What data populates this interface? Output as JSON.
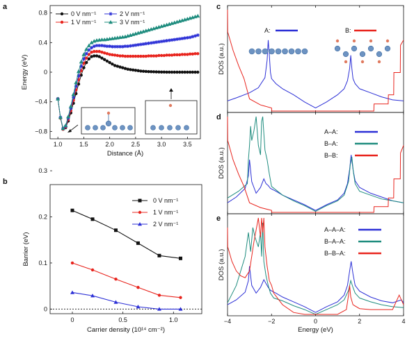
{
  "panel_letters": {
    "a": "a",
    "b": "b",
    "c": "c",
    "d": "d",
    "e": "e"
  },
  "chart_data": [
    {
      "id": "a",
      "type": "line",
      "xlabel": "Distance (Å)",
      "ylabel": "Energy (eV)",
      "xlim": [
        0.85,
        3.75
      ],
      "ylim": [
        -0.9,
        0.9
      ],
      "xticks": [
        "1.0",
        "1.5",
        "2.0",
        "2.5",
        "3.0",
        "3.5"
      ],
      "xtick_values": [
        1.0,
        1.5,
        2.0,
        2.5,
        3.0,
        3.5
      ],
      "yticks": [
        "−0.8",
        "−0.4",
        "0",
        "0.4",
        "0.8"
      ],
      "ytick_values": [
        -0.8,
        -0.4,
        0,
        0.4,
        0.8
      ],
      "legend_position": "top-left",
      "colors": [
        "#111111",
        "#e8241d",
        "#2b2fd6",
        "#1e8c7e"
      ],
      "markers": [
        "circle",
        "circle",
        "star",
        "triangle"
      ],
      "x": [
        1.0,
        1.05,
        1.1,
        1.15,
        1.2,
        1.25,
        1.3,
        1.35,
        1.4,
        1.45,
        1.5,
        1.55,
        1.6,
        1.65,
        1.7,
        1.75,
        1.8,
        1.85,
        1.9,
        1.95,
        2.0,
        2.05,
        2.1,
        2.15,
        2.2,
        2.25,
        2.3,
        2.35,
        2.4,
        2.45,
        2.5,
        2.55,
        2.6,
        2.65,
        2.7,
        2.75,
        2.8,
        2.85,
        2.9,
        2.95,
        3.0,
        3.05,
        3.1,
        3.15,
        3.2,
        3.25,
        3.3,
        3.35,
        3.4,
        3.45,
        3.5,
        3.55,
        3.6,
        3.65,
        3.7
      ],
      "series": [
        {
          "name": "0 V nm⁻¹",
          "values": [
            -0.36,
            -0.62,
            -0.77,
            -0.75,
            -0.66,
            -0.55,
            -0.42,
            -0.29,
            -0.16,
            -0.04,
            0.06,
            0.13,
            0.18,
            0.21,
            0.22,
            0.22,
            0.21,
            0.19,
            0.17,
            0.15,
            0.13,
            0.11,
            0.09,
            0.08,
            0.07,
            0.06,
            0.05,
            0.04,
            0.035,
            0.03,
            0.025,
            0.02,
            0.015,
            0.012,
            0.01,
            0.008,
            0.006,
            0.005,
            0.004,
            0.003,
            0.002,
            0.002,
            0.001,
            0.001,
            0.0,
            0.0,
            0.0,
            0.0,
            0.0,
            0.0,
            0.0,
            0.0,
            0.0,
            0.0,
            0.0
          ]
        },
        {
          "name": "1 V nm⁻¹",
          "values": [
            -0.36,
            -0.62,
            -0.77,
            -0.74,
            -0.64,
            -0.52,
            -0.38,
            -0.24,
            -0.1,
            0.02,
            0.12,
            0.19,
            0.24,
            0.27,
            0.28,
            0.28,
            0.28,
            0.27,
            0.26,
            0.25,
            0.24,
            0.235,
            0.23,
            0.225,
            0.22,
            0.22,
            0.215,
            0.215,
            0.215,
            0.215,
            0.215,
            0.215,
            0.215,
            0.215,
            0.215,
            0.22,
            0.22,
            0.22,
            0.22,
            0.225,
            0.225,
            0.225,
            0.23,
            0.23,
            0.23,
            0.235,
            0.235,
            0.235,
            0.24,
            0.24,
            0.24,
            0.245,
            0.245,
            0.25,
            0.25
          ]
        },
        {
          "name": "2 V nm⁻¹",
          "values": [
            -0.36,
            -0.61,
            -0.76,
            -0.73,
            -0.62,
            -0.49,
            -0.34,
            -0.19,
            -0.05,
            0.08,
            0.18,
            0.25,
            0.3,
            0.33,
            0.35,
            0.36,
            0.36,
            0.36,
            0.355,
            0.35,
            0.35,
            0.345,
            0.345,
            0.345,
            0.345,
            0.345,
            0.35,
            0.35,
            0.355,
            0.36,
            0.365,
            0.37,
            0.375,
            0.38,
            0.385,
            0.39,
            0.395,
            0.4,
            0.405,
            0.41,
            0.415,
            0.42,
            0.425,
            0.43,
            0.435,
            0.44,
            0.445,
            0.45,
            0.455,
            0.46,
            0.465,
            0.47,
            0.48,
            0.49,
            0.5
          ]
        },
        {
          "name": "3 V nm⁻¹",
          "values": [
            -0.36,
            -0.61,
            -0.76,
            -0.72,
            -0.6,
            -0.46,
            -0.3,
            -0.14,
            0.01,
            0.14,
            0.24,
            0.31,
            0.36,
            0.4,
            0.42,
            0.43,
            0.435,
            0.44,
            0.44,
            0.445,
            0.45,
            0.455,
            0.46,
            0.465,
            0.47,
            0.475,
            0.48,
            0.49,
            0.5,
            0.51,
            0.52,
            0.53,
            0.54,
            0.55,
            0.56,
            0.57,
            0.58,
            0.59,
            0.6,
            0.61,
            0.62,
            0.63,
            0.64,
            0.65,
            0.66,
            0.67,
            0.68,
            0.69,
            0.7,
            0.71,
            0.72,
            0.73,
            0.74,
            0.75,
            0.76
          ]
        }
      ]
    },
    {
      "id": "b",
      "type": "line",
      "xlabel": "Carrier density (10¹⁴ cm⁻²)",
      "ylabel": "Barrier (eV)",
      "xlim": [
        -0.22,
        1.28
      ],
      "ylim": [
        -0.01,
        0.27
      ],
      "xticks": [
        "0",
        "0.5",
        "1.0"
      ],
      "xtick_values": [
        0,
        0.5,
        1.0
      ],
      "yticks": [
        "0",
        "0.1",
        "0.2",
        "0.3"
      ],
      "ytick_values": [
        0,
        0.1,
        0.2,
        0.3
      ],
      "legend_position": "top-right",
      "colors": [
        "#111111",
        "#e8241d",
        "#2b2fd6"
      ],
      "markers": [
        "square",
        "circle",
        "triangle"
      ],
      "x": [
        0,
        0.2,
        0.43,
        0.65,
        0.86,
        1.07
      ],
      "series": [
        {
          "name": "0 V nm⁻¹",
          "values": [
            0.214,
            0.195,
            0.171,
            0.143,
            0.116,
            0.11
          ]
        },
        {
          "name": "1 V nm⁻¹",
          "values": [
            0.1,
            0.085,
            0.065,
            0.047,
            0.03,
            0.025
          ]
        },
        {
          "name": "2 V nm⁻¹",
          "values": [
            0.036,
            0.029,
            0.015,
            0.005,
            0.0,
            0.0
          ]
        }
      ],
      "reference_line": {
        "y": 0,
        "style": "dotted"
      }
    },
    {
      "id": "c",
      "type": "line",
      "ylabel": "DOS (a.u.)",
      "xlim": [
        -4,
        4
      ],
      "legend_position": "top",
      "colors": [
        "#2b2fd6",
        "#e8241d"
      ],
      "series": [
        {
          "name": "A:",
          "x": [
            -4,
            -3.6,
            -3.0,
            -2.6,
            -2.3,
            -2.2,
            -2.15,
            -2.1,
            -2.05,
            -2.0,
            -1.8,
            -1.5,
            -1.0,
            -0.5,
            0.0,
            0.5,
            1.0,
            1.3,
            1.45,
            1.55,
            1.6,
            1.65,
            1.7,
            1.8,
            2.0,
            2.5,
            3.0,
            3.5,
            4.0
          ],
          "values": [
            0.1,
            0.13,
            0.18,
            0.23,
            0.33,
            0.5,
            0.7,
            0.55,
            0.38,
            0.32,
            0.27,
            0.22,
            0.16,
            0.09,
            0.03,
            0.09,
            0.16,
            0.22,
            0.3,
            0.42,
            0.55,
            0.42,
            0.32,
            0.27,
            0.22,
            0.18,
            0.14,
            0.11,
            0.1
          ]
        },
        {
          "name": "B:",
          "x": [
            -4,
            -3.99,
            -3.75,
            -3.5,
            -3.25,
            -3.0,
            -2.5,
            -2.0,
            -1.99,
            -1.0,
            0.0,
            1.0,
            2.0,
            2.5,
            2.65,
            2.66,
            3.3,
            3.31,
            3.55,
            3.56,
            3.85,
            3.86,
            4.0
          ],
          "values": [
            1.0,
            0.78,
            0.6,
            0.45,
            0.32,
            0.12,
            0.06,
            0.03,
            0.0,
            0.0,
            0.0,
            0.0,
            0.0,
            0.0,
            0.0,
            0.07,
            0.07,
            0.16,
            0.16,
            0.38,
            0.38,
            0.65,
            0.7
          ]
        }
      ]
    },
    {
      "id": "d",
      "type": "line",
      "ylabel": "DOS (a.u.)",
      "xlim": [
        -4,
        4
      ],
      "legend_position": "right",
      "colors": [
        "#2b2fd6",
        "#1e8c7e",
        "#e8241d"
      ],
      "series": [
        {
          "name": "A–A:",
          "x": [
            -4,
            -3.6,
            -3.2,
            -3.05,
            -3.0,
            -2.9,
            -2.7,
            -2.5,
            -2.35,
            -2.25,
            -2.15,
            -2.05,
            -1.8,
            -1.5,
            -1.0,
            -0.5,
            0.0,
            0.5,
            1.0,
            1.3,
            1.45,
            1.55,
            1.62,
            1.7,
            1.8,
            2.0,
            2.5,
            3.0,
            3.5,
            4.0
          ],
          "values": [
            0.1,
            0.16,
            0.25,
            0.38,
            0.55,
            0.32,
            0.2,
            0.26,
            0.35,
            0.3,
            0.28,
            0.25,
            0.22,
            0.18,
            0.13,
            0.08,
            0.02,
            0.08,
            0.13,
            0.2,
            0.3,
            0.45,
            0.6,
            0.45,
            0.33,
            0.26,
            0.2,
            0.16,
            0.12,
            0.1
          ]
        },
        {
          "name": "B–A:",
          "x": [
            -4,
            -3.5,
            -3.1,
            -3.05,
            -3.0,
            -2.95,
            -2.9,
            -2.8,
            -2.7,
            -2.6,
            -2.5,
            -2.45,
            -2.4,
            -2.3,
            -2.2,
            -2.1,
            -2.0,
            -1.5,
            -1.0,
            -0.5,
            0.0,
            0.5,
            1.0,
            1.3,
            1.5,
            1.58,
            1.65,
            1.72,
            1.8,
            2.0,
            2.5,
            3.0,
            3.5,
            4.0
          ],
          "values": [
            0.15,
            0.22,
            0.3,
            0.55,
            0.7,
            0.9,
            0.75,
            0.85,
            1.0,
            0.7,
            0.6,
            0.95,
            1.0,
            0.65,
            0.55,
            0.4,
            0.27,
            0.18,
            0.12,
            0.07,
            0.01,
            0.07,
            0.12,
            0.18,
            0.32,
            0.5,
            0.58,
            0.42,
            0.3,
            0.22,
            0.18,
            0.14,
            0.12,
            0.1
          ]
        },
        {
          "name": "B–B:",
          "x": [
            -4,
            -3.99,
            -3.75,
            -3.5,
            -3.25,
            -3.0,
            -2.5,
            -2.0,
            -1.99,
            -1.0,
            0.0,
            1.0,
            2.0,
            2.5,
            2.65,
            2.66,
            3.3,
            3.31,
            3.55,
            3.56,
            3.85,
            3.86,
            4.0
          ],
          "values": [
            1.0,
            0.75,
            0.55,
            0.4,
            0.27,
            0.1,
            0.05,
            0.02,
            0.0,
            0.0,
            0.0,
            0.0,
            0.0,
            0.0,
            0.0,
            0.06,
            0.06,
            0.15,
            0.15,
            0.35,
            0.35,
            0.62,
            0.7
          ]
        }
      ]
    },
    {
      "id": "e",
      "type": "line",
      "ylabel": "DOS (a.u.)",
      "xlabel": "Energy (eV)",
      "xlim": [
        -4,
        4
      ],
      "xticks": [
        "−4",
        "−2",
        "0",
        "2",
        "4"
      ],
      "xtick_values": [
        -4,
        -2,
        0,
        2,
        4
      ],
      "legend_position": "right",
      "colors": [
        "#2b2fd6",
        "#1e8c7e",
        "#e8241d"
      ],
      "series": [
        {
          "name": "A–A–A:",
          "x": [
            -4,
            -3.6,
            -3.2,
            -3.05,
            -3.0,
            -2.9,
            -2.7,
            -2.5,
            -2.35,
            -2.25,
            -2.15,
            -2.05,
            -1.8,
            -1.5,
            -1.0,
            -0.5,
            0.0,
            0.5,
            1.0,
            1.3,
            1.45,
            1.55,
            1.62,
            1.7,
            1.8,
            2.0,
            2.5,
            3.0,
            3.5,
            3.9,
            4.0
          ],
          "values": [
            0.1,
            0.15,
            0.23,
            0.35,
            0.5,
            0.3,
            0.22,
            0.28,
            0.36,
            0.32,
            0.28,
            0.25,
            0.22,
            0.18,
            0.13,
            0.08,
            0.02,
            0.08,
            0.13,
            0.2,
            0.3,
            0.45,
            0.55,
            0.42,
            0.3,
            0.24,
            0.18,
            0.14,
            0.12,
            0.15,
            0.12
          ]
        },
        {
          "name": "B–A–A:",
          "x": [
            -4,
            -3.6,
            -3.2,
            -3.05,
            -3.0,
            -2.95,
            -2.85,
            -2.75,
            -2.6,
            -2.5,
            -2.45,
            -2.4,
            -2.35,
            -2.25,
            -2.15,
            -2.05,
            -1.9,
            -1.5,
            -1.0,
            -0.5,
            0.0,
            0.5,
            1.0,
            1.3,
            1.5,
            1.6,
            1.7,
            1.8,
            2.0,
            2.5,
            3.0,
            3.5,
            4.0
          ],
          "values": [
            0.12,
            0.3,
            0.6,
            0.85,
            0.75,
            0.65,
            0.9,
            0.8,
            0.7,
            0.85,
            0.6,
            0.95,
            0.55,
            0.4,
            0.3,
            0.22,
            0.17,
            0.14,
            0.09,
            0.05,
            0.0,
            0.05,
            0.1,
            0.15,
            0.25,
            0.35,
            0.28,
            0.22,
            0.17,
            0.13,
            0.1,
            0.08,
            0.07
          ]
        },
        {
          "name": "B–B–A:",
          "x": [
            -4,
            -3.99,
            -3.8,
            -3.6,
            -3.4,
            -3.2,
            -3.0,
            -2.8,
            -2.6,
            -2.5,
            -2.45,
            -2.4,
            -2.35,
            -2.3,
            -2.2,
            -2.1,
            -2.0,
            -1.9,
            -1.5,
            -1.0,
            -0.5,
            0.0,
            0.5,
            1.0,
            1.4,
            1.5,
            1.55,
            1.6,
            1.7,
            2.0,
            2.5,
            2.7,
            3.0,
            3.5,
            3.8,
            4.0
          ],
          "values": [
            0.9,
            0.7,
            0.55,
            0.45,
            0.4,
            0.38,
            0.45,
            0.75,
            1.0,
            0.8,
            1.0,
            0.85,
            1.0,
            0.7,
            0.5,
            0.35,
            0.3,
            0.22,
            0.1,
            0.02,
            0.0,
            0.0,
            0.0,
            0.0,
            0.05,
            0.2,
            0.3,
            0.18,
            0.1,
            0.06,
            0.05,
            0.05,
            0.05,
            0.05,
            0.2,
            0.1
          ]
        }
      ]
    }
  ]
}
